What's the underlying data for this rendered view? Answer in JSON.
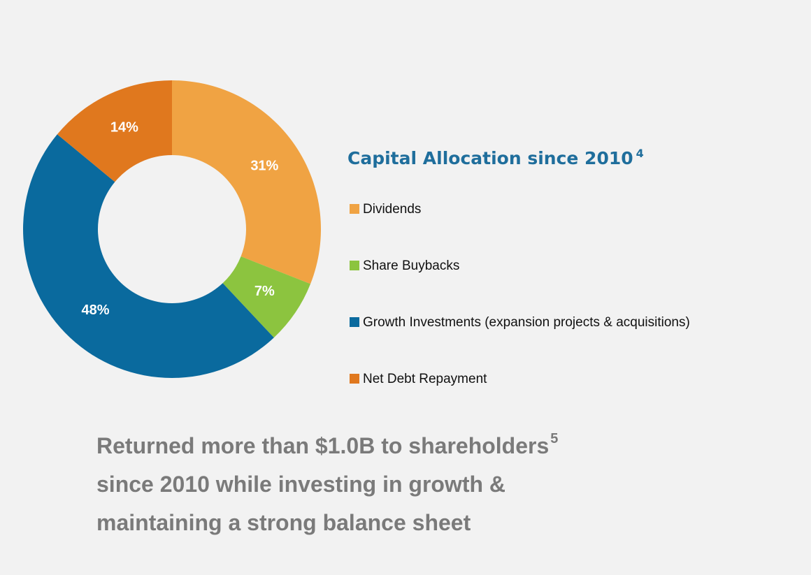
{
  "chart_data": {
    "type": "donut",
    "title": "Capital Allocation since 2010",
    "title_superscript": "4",
    "categories": [
      "Dividends",
      "Share Buybacks",
      "Growth Investments (expansion projects & acquisitions)",
      "Net Debt Repayment"
    ],
    "values": [
      31,
      7,
      48,
      14
    ],
    "value_labels": [
      "31%",
      "7%",
      "48%",
      "14%"
    ],
    "colors": [
      "#f0a343",
      "#8cc43f",
      "#0a6a9e",
      "#e0781e"
    ],
    "annotation": {
      "lines": [
        "Returned more than $1.0B to shareholders",
        "since 2010 while investing in growth &",
        "maintaining a strong balance sheet"
      ],
      "superscript": "5"
    }
  }
}
